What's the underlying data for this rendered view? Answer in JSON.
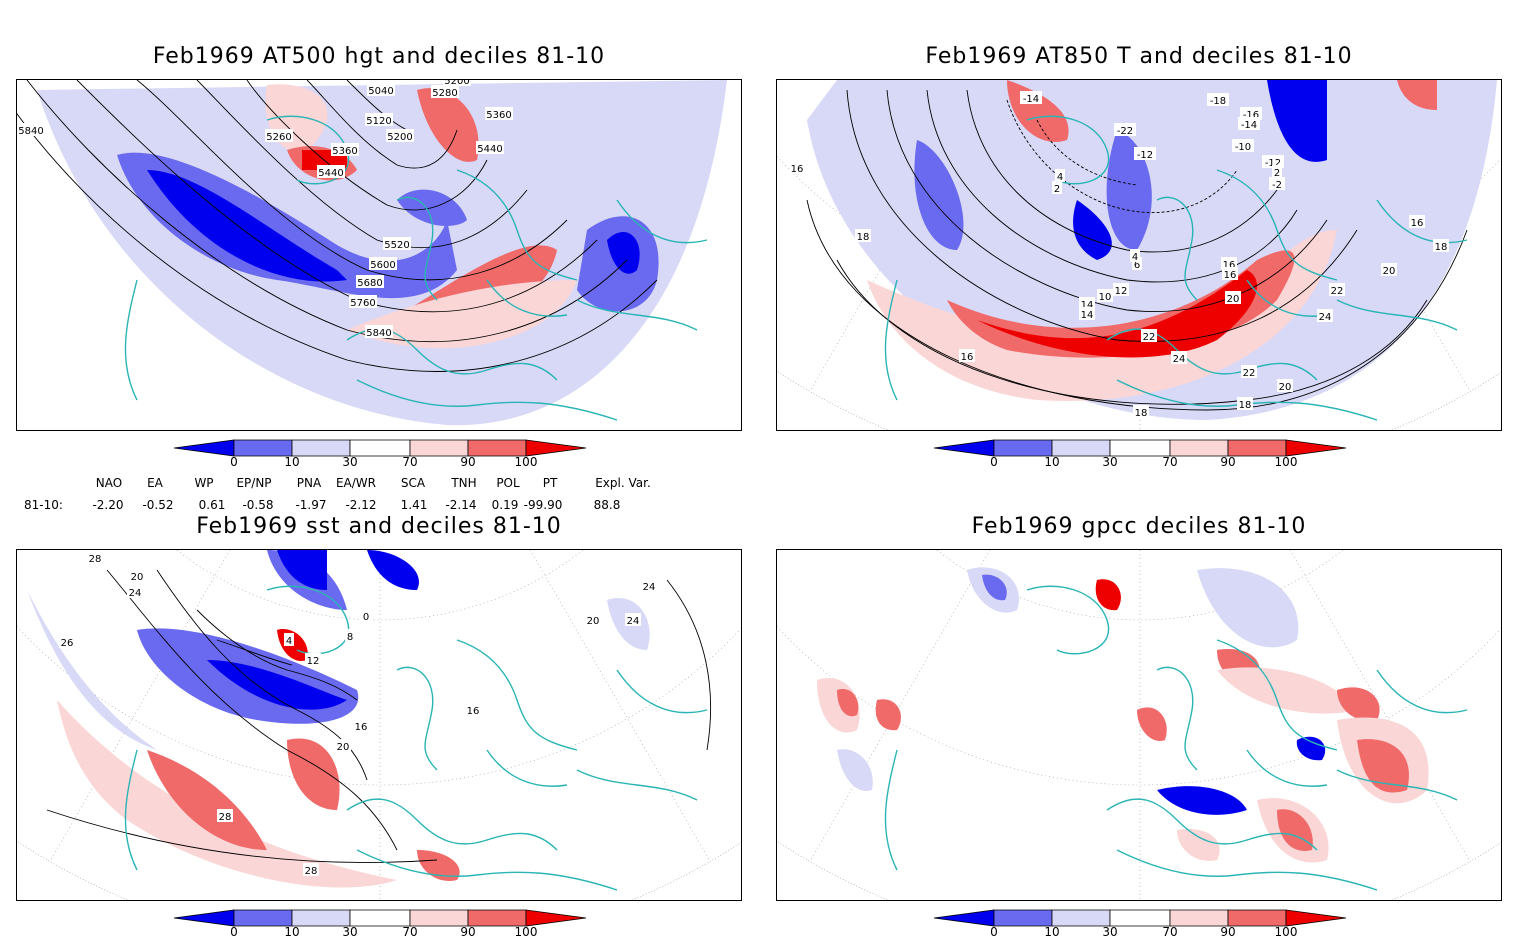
{
  "colors": {
    "deep_blue": "#0000ee",
    "mid_blue": "#6a6af0",
    "light_blue": "#d8d8f7",
    "light_red": "#fbd6d6",
    "mid_red": "#f06a6a",
    "deep_red": "#ee0000",
    "coast": "#2ab5b5",
    "contour": "#000000"
  },
  "colorbar": {
    "labels": [
      "0",
      "10",
      "30",
      "70",
      "90",
      "100"
    ]
  },
  "panels": [
    {
      "title": "Feb1969 AT500 hgt and deciles 81-10",
      "contour_labels": [
        "5840",
        "5040",
        "5200",
        "5280",
        "5120",
        "5200",
        "5360",
        "5260",
        "5360",
        "5440",
        "5440",
        "5520",
        "5600",
        "5680",
        "5760",
        "5840"
      ]
    },
    {
      "title": "Feb1969 AT850 T and deciles 81-10",
      "contour_labels": [
        "-14",
        "-18",
        "-16",
        "-14",
        "-22",
        "-12",
        "-10",
        "-12",
        "4",
        "2",
        "-2",
        "16",
        "18",
        "2",
        "6",
        "4",
        "10",
        "12",
        "14",
        "16",
        "16",
        "14",
        "22",
        "24",
        "20",
        "22",
        "20",
        "18",
        "18",
        "16",
        "24",
        "22",
        "18",
        "16",
        "20"
      ]
    },
    {
      "title": "Feb1969 sst and deciles 81-10",
      "contour_labels": [
        "28",
        "20",
        "24",
        "26",
        "0",
        "4",
        "8",
        "12",
        "16",
        "16",
        "20",
        "24",
        "28",
        "28",
        "24",
        "20"
      ]
    },
    {
      "title": "Feb1969 gpcc deciles 81-10",
      "contour_labels": []
    }
  ],
  "indices": {
    "headers": [
      "NAO",
      "EA",
      "WP",
      "EP/NP",
      "PNA",
      "EA/WR",
      "SCA",
      "TNH",
      "POL",
      "PT",
      "Expl. Var."
    ],
    "row_label": "81-10:",
    "values": [
      "-2.20",
      "-0.52",
      "0.61",
      "-0.58",
      "-1.97",
      "-2.12",
      "1.41",
      "-2.14",
      "0.19",
      "-99.90",
      "88.8"
    ]
  }
}
